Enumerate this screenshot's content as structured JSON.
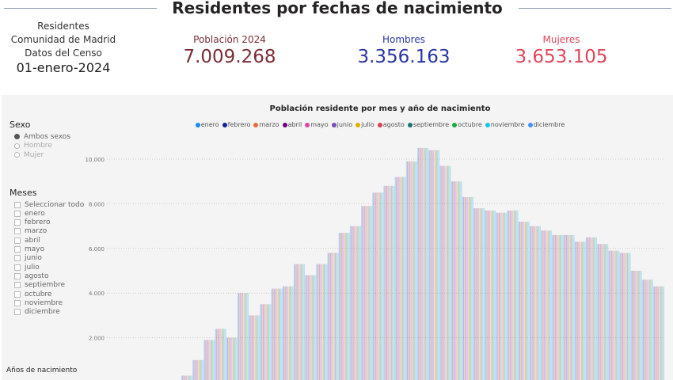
{
  "header": {
    "title": "Residentes por fechas de nacimiento"
  },
  "info": {
    "line1": "Residentes",
    "line2": "Comunidad de Madrid",
    "line3": "Datos del Censo",
    "date": "01-enero-2024"
  },
  "kpis": [
    {
      "label": "Población 2024",
      "value": "7.009.268",
      "color": "#7b2d36"
    },
    {
      "label": "Hombres",
      "value": "3.356.163",
      "color": "#2b36a6"
    },
    {
      "label": "Mujeres",
      "value": "3.653.105",
      "color": "#e0475a"
    }
  ],
  "filters": {
    "sexo": {
      "title": "Sexo",
      "options": [
        "Ambos sexos",
        "Hombre",
        "Mujer"
      ],
      "selected": "Ambos sexos"
    },
    "meses": {
      "title": "Meses",
      "options": [
        "Seleccionar todo",
        "enero",
        "febrero",
        "marzo",
        "abril",
        "mayo",
        "junio",
        "julio",
        "agosto",
        "septiembre",
        "octubre",
        "noviembre",
        "diciembre"
      ]
    },
    "years_title": "Años de nacimiento"
  },
  "chart_data": {
    "type": "bar",
    "title": "Población residente por mes y año de nacimiento",
    "legend": [
      "enero",
      "febrero",
      "marzo",
      "abril",
      "mayo",
      "junio",
      "julio",
      "agosto",
      "septiembre",
      "octubre",
      "noviembre",
      "diciembre"
    ],
    "legend_colors": [
      "#118DFF",
      "#12239E",
      "#E66C37",
      "#6B007B",
      "#E044A7",
      "#744EC2",
      "#D9B300",
      "#D64550",
      "#197278",
      "#1AAB40",
      "#15C6F4",
      "#4092FF"
    ],
    "legend_position": "top-center",
    "yticks": [
      "2.000",
      "4.000",
      "6.000",
      "8.000",
      "10.000"
    ],
    "ylim": [
      0,
      11000
    ],
    "grid": true,
    "values": [
      100,
      300,
      1000,
      1900,
      2400,
      2000,
      4000,
      3000,
      3500,
      4200,
      4300,
      5300,
      4800,
      5300,
      5800,
      6700,
      7000,
      7900,
      8500,
      8800,
      9200,
      9900,
      10500,
      10400,
      9700,
      9000,
      8300,
      7800,
      7700,
      7600,
      7700,
      7200,
      7000,
      6800,
      6600,
      6600,
      6300,
      6500,
      6200,
      5900,
      5800,
      5000,
      4600,
      4300
    ]
  }
}
